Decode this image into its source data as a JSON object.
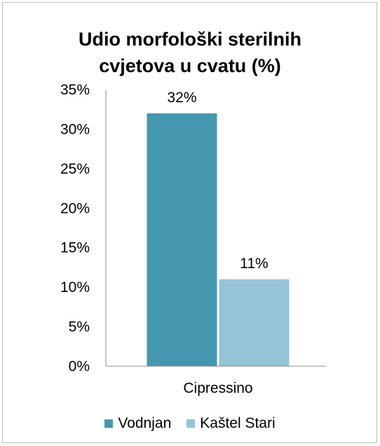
{
  "chart_data": {
    "type": "bar",
    "title": "Udio morfološki sterilnih cvjetova u cvatu (%)",
    "title_lines": [
      "Udio morfološki sterilnih",
      "cvjetova u cvatu (%)"
    ],
    "categories": [
      "Cipressino"
    ],
    "series": [
      {
        "name": "Vodnjan",
        "values": [
          32
        ],
        "label": "32%",
        "color": "#4598b0"
      },
      {
        "name": "Kaštel Stari",
        "values": [
          11
        ],
        "label": "11%",
        "color": "#94c4d6"
      }
    ],
    "xlabel": "",
    "ylabel": "",
    "ylim": [
      0,
      35
    ],
    "yticks": [
      0,
      5,
      10,
      15,
      20,
      25,
      30,
      35
    ],
    "ytick_labels": [
      "0%",
      "5%",
      "10%",
      "15%",
      "20%",
      "25%",
      "30%",
      "35%"
    ],
    "grid": false,
    "legend": "bottom"
  }
}
